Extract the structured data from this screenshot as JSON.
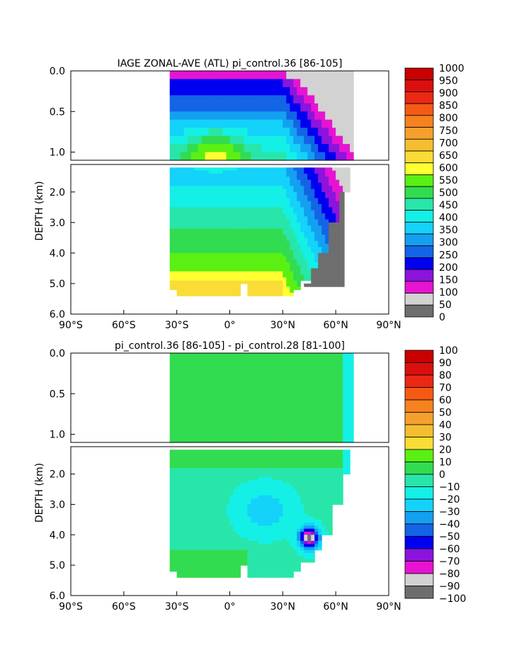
{
  "chart_data": [
    {
      "type": "heatmap",
      "title": "IAGE ZONAL-AVE (ATL) pi_control.36 [86-105]",
      "xlabel": "",
      "ylabel": "DEPTH (km)",
      "xlim": [
        -90,
        90
      ],
      "ylim": [
        0,
        6
      ],
      "x_ticks": [
        "90°S",
        "60°S",
        "30°S",
        "0°",
        "30°N",
        "60°N",
        "90°N"
      ],
      "y_ticks": [
        "0.0",
        "0.5",
        "1.0",
        "2.0",
        "3.0",
        "4.0",
        "5.0",
        "6.0"
      ],
      "colorbar_levels": [
        "1000",
        "950",
        "900",
        "850",
        "800",
        "750",
        "700",
        "650",
        "600",
        "550",
        "500",
        "450",
        "400",
        "350",
        "300",
        "250",
        "200",
        "150",
        "100",
        "50",
        "0"
      ],
      "colorbar_colors": [
        "#c80000",
        "#dc0f0f",
        "#eb2814",
        "#f55a14",
        "#f5821e",
        "#f5a02d",
        "#f5be32",
        "#fadc37",
        "#ffff32",
        "#5af014",
        "#32dc50",
        "#28e6aa",
        "#14f0e6",
        "#14d2fa",
        "#14a0f0",
        "#1464e6",
        "#0000f0",
        "#8c14dc",
        "#e614d2",
        "#d2d2d2",
        "#6e6e6e"
      ],
      "fields": {
        "age_core_upper": 400,
        "age_deep_max": 600,
        "age_north": 0
      }
    },
    {
      "type": "heatmap",
      "title": "pi_control.36 [86-105] - pi_control.28 [81-100]",
      "xlabel": "",
      "ylabel": "DEPTH (km)",
      "xlim": [
        -90,
        90
      ],
      "ylim": [
        0,
        6
      ],
      "x_ticks": [
        "90°S",
        "60°S",
        "30°S",
        "0°",
        "30°N",
        "60°N",
        "90°N"
      ],
      "y_ticks": [
        "0.0",
        "0.5",
        "1.0",
        "2.0",
        "3.0",
        "4.0",
        "5.0",
        "6.0"
      ],
      "colorbar_levels": [
        "100",
        "90",
        "80",
        "70",
        "60",
        "50",
        "40",
        "30",
        "20",
        "10",
        "0",
        "−10",
        "−20",
        "−30",
        "−40",
        "−50",
        "−60",
        "−70",
        "−80",
        "−90",
        "−100"
      ],
      "colorbar_colors": [
        "#c80000",
        "#dc0f0f",
        "#eb2814",
        "#f55a14",
        "#f5821e",
        "#f5a02d",
        "#f5be32",
        "#fadc37",
        "#5af014",
        "#32dc50",
        "#28e6aa",
        "#14f0e6",
        "#14d2fa",
        "#14a0f0",
        "#1464e6",
        "#0000f0",
        "#8c14dc",
        "#e614d2",
        "#d2d2d2",
        "#6e6e6e"
      ],
      "fields": {
        "diff_upper": 5,
        "diff_mid": -15,
        "diff_min": -80
      }
    }
  ]
}
